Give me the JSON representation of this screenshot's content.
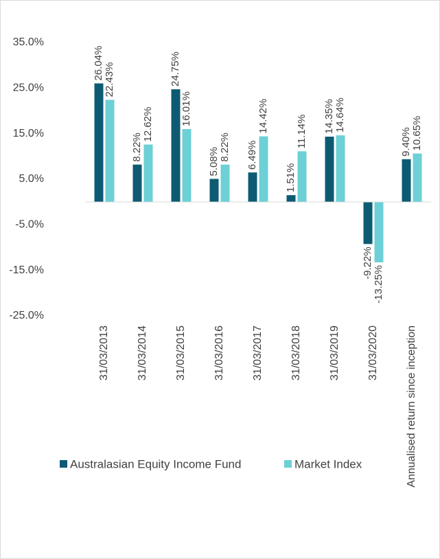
{
  "chart_data": {
    "type": "bar",
    "categories": [
      "31/03/2013",
      "31/03/2014",
      "31/03/2015",
      "31/03/2016",
      "31/03/2017",
      "31/03/2018",
      "31/03/2019",
      "31/03/2020",
      "Annualised return since inception"
    ],
    "series": [
      {
        "name": "Australasian Equity Income Fund",
        "color": "#0d5b73",
        "values": [
          26.04,
          8.22,
          24.75,
          5.08,
          6.49,
          1.51,
          14.35,
          -9.22,
          9.4
        ],
        "value_labels": [
          "26.04%",
          "8.22%",
          "24.75%",
          "5.08%",
          "6.49%",
          "1.51%",
          "14.35%",
          "-9.22%",
          "9.40%"
        ]
      },
      {
        "name": "Market Index",
        "color": "#6dd0d6",
        "values": [
          22.43,
          12.62,
          16.01,
          8.22,
          14.42,
          11.14,
          14.64,
          -13.25,
          10.65
        ],
        "value_labels": [
          "22.43%",
          "12.62%",
          "16.01%",
          "8.22%",
          "14.42%",
          "11.14%",
          "14.64%",
          "-13.25%",
          "10.65%"
        ]
      }
    ],
    "ylim": [
      -25,
      35
    ],
    "yticks": [
      {
        "value": 35,
        "label": "35.0%"
      },
      {
        "value": 25,
        "label": "25.0%"
      },
      {
        "value": 15,
        "label": "15.0%"
      },
      {
        "value": 5,
        "label": "5.0%"
      },
      {
        "value": -5,
        "label": "-5.0%"
      },
      {
        "value": -15,
        "label": "-15.0%"
      },
      {
        "value": -25,
        "label": "-25.0%"
      }
    ],
    "legend": "bottom",
    "grid": false
  }
}
